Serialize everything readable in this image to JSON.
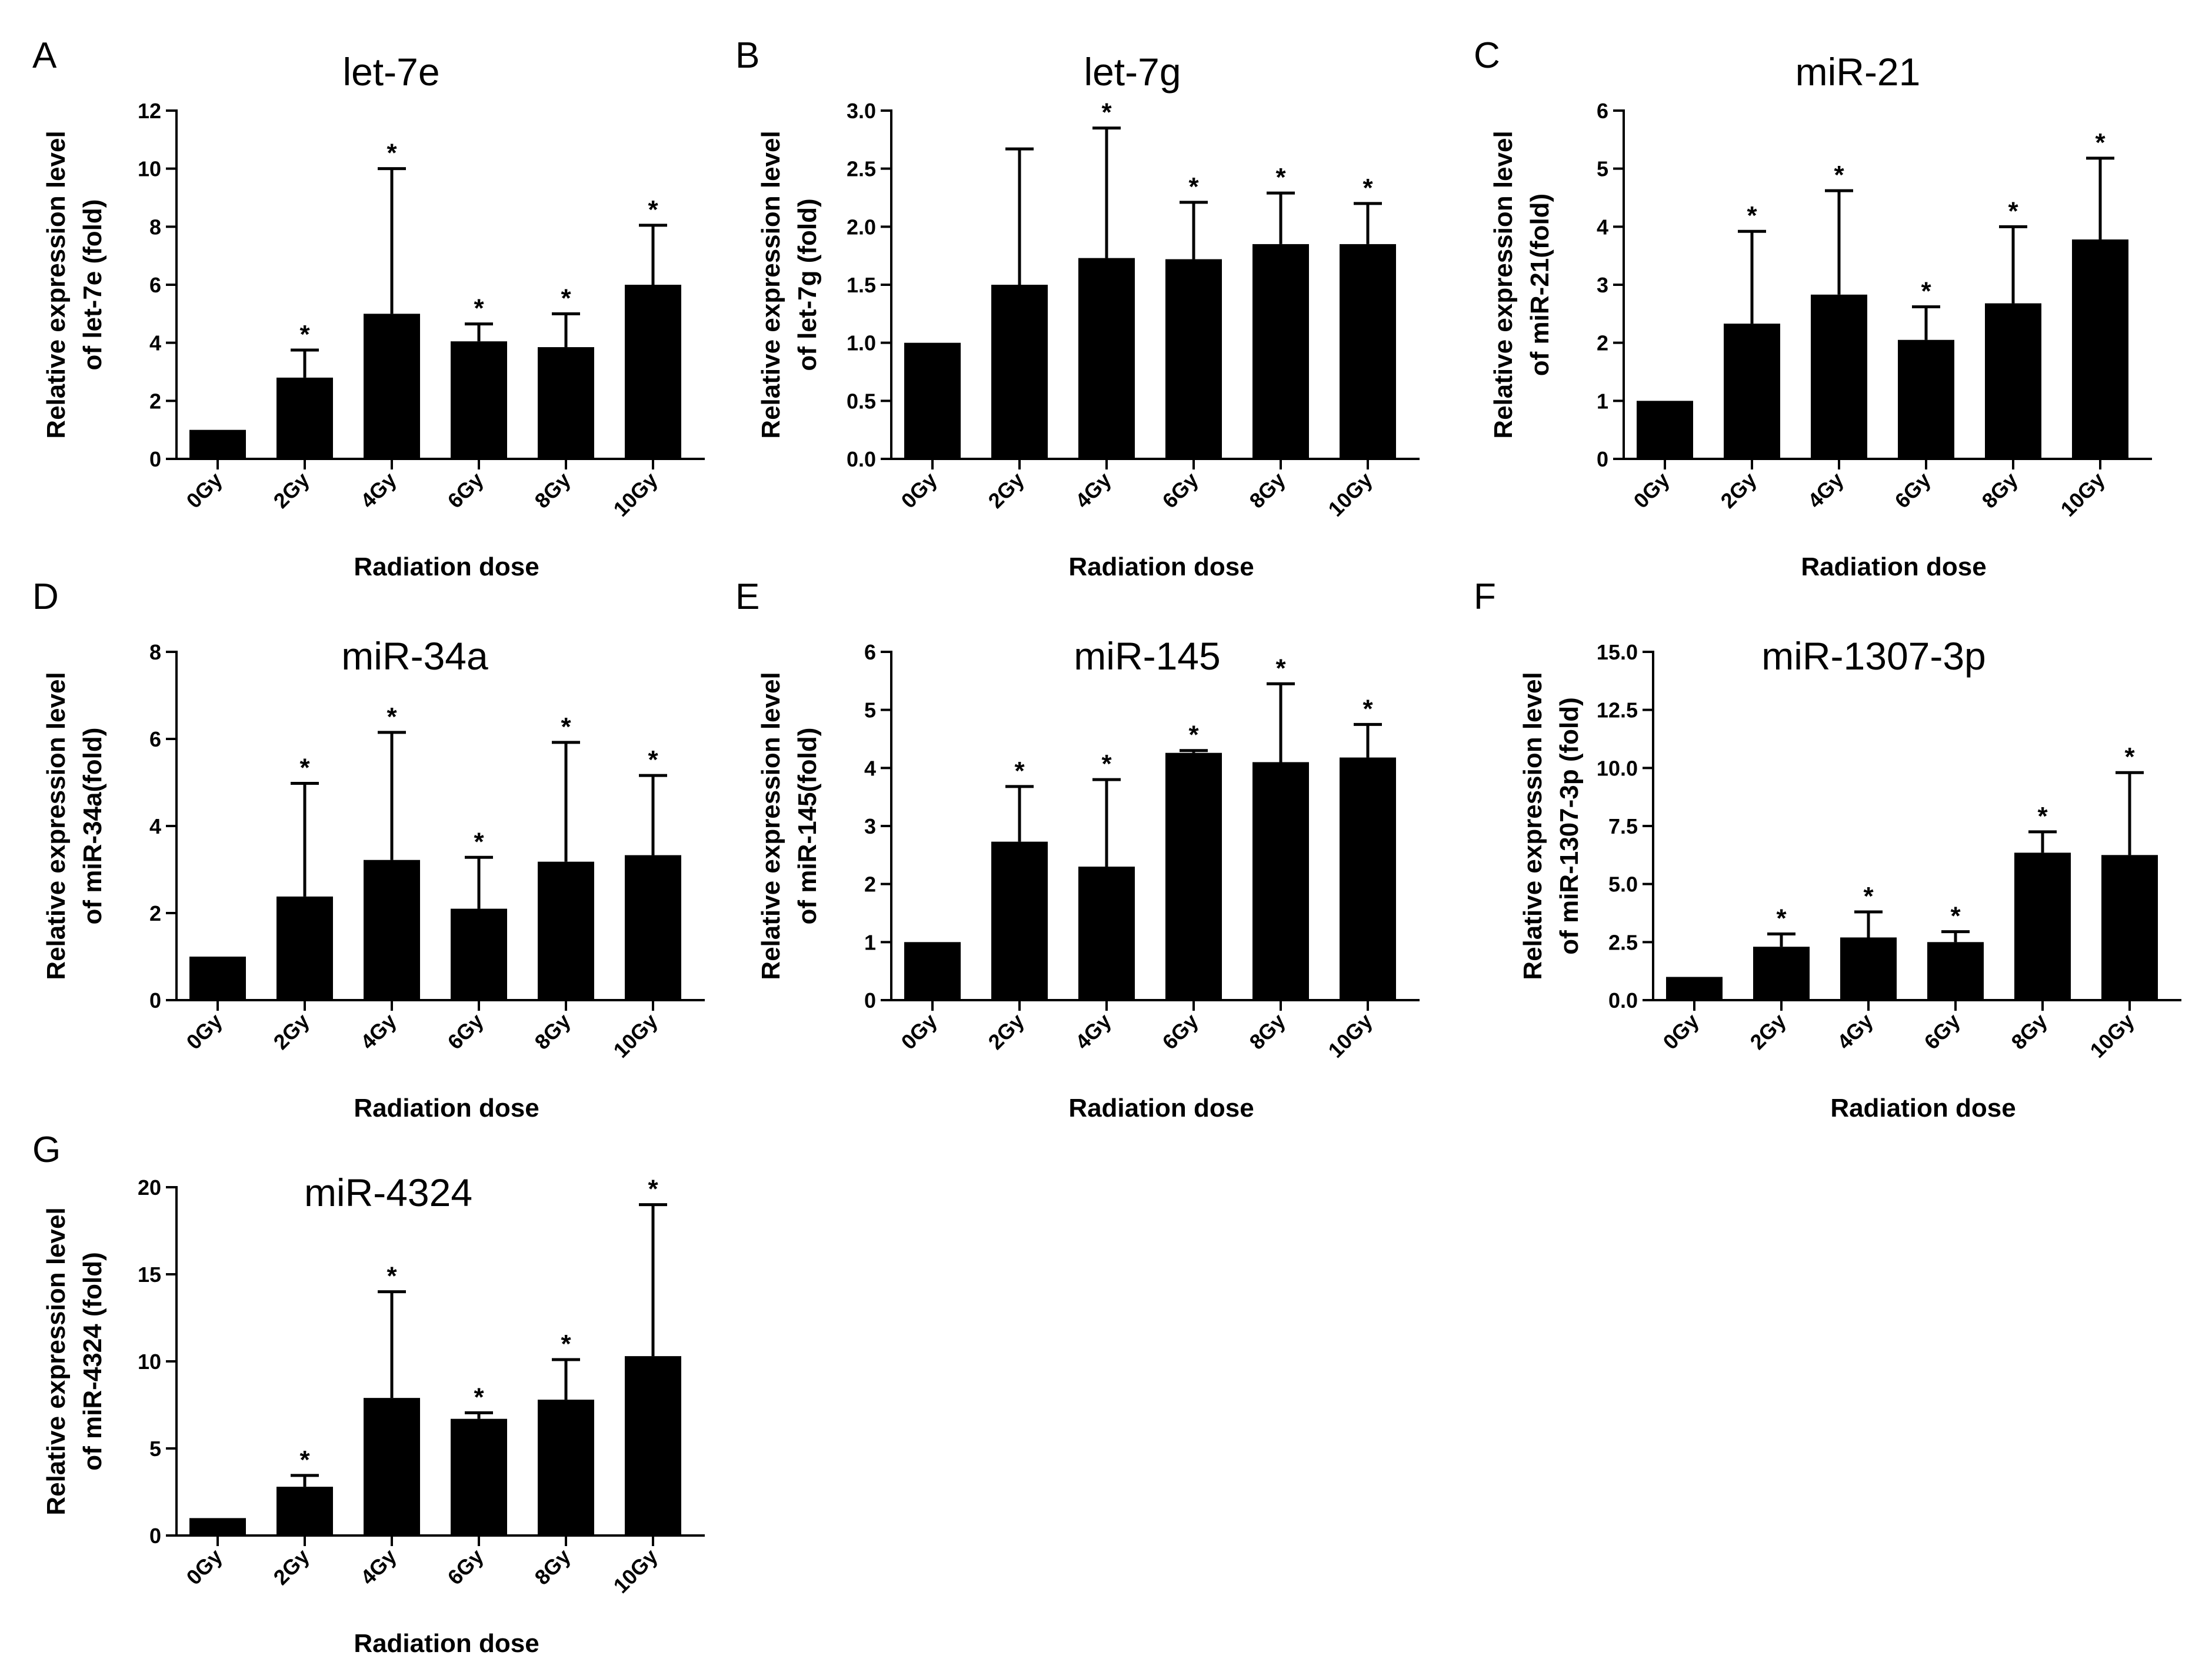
{
  "figure": {
    "background": "#ffffff",
    "ink": "#000000"
  },
  "chart_data": [
    {
      "panel": "A",
      "type": "bar",
      "title": "let-7e",
      "xlabel": "Radiation dose",
      "ylabel": [
        "Relative expression level",
        "of let-7e (fold)"
      ],
      "categories": [
        "0Gy",
        "2Gy",
        "4Gy",
        "6Gy",
        "8Gy",
        "10Gy"
      ],
      "values": [
        1.0,
        2.8,
        5.0,
        4.05,
        3.85,
        6.0
      ],
      "errors": [
        0,
        0.95,
        5.0,
        0.6,
        1.15,
        2.05
      ],
      "significance": [
        "",
        "*",
        "*",
        "*",
        "*",
        "*"
      ],
      "ylim": [
        0,
        12
      ],
      "yticks": [
        0,
        2,
        4,
        6,
        8,
        10,
        12
      ],
      "ytick_labels": [
        "0",
        "2",
        "4",
        "6",
        "8",
        "10",
        "12"
      ],
      "grid": false
    },
    {
      "panel": "B",
      "type": "bar",
      "title": "let-7g",
      "xlabel": "Radiation dose",
      "ylabel": [
        "Relative expression level",
        "of let-7g (fold)"
      ],
      "categories": [
        "0Gy",
        "2Gy",
        "4Gy",
        "6Gy",
        "8Gy",
        "10Gy"
      ],
      "values": [
        1.0,
        1.5,
        1.73,
        1.72,
        1.85,
        1.85
      ],
      "errors": [
        0,
        1.17,
        1.12,
        0.49,
        0.44,
        0.35
      ],
      "significance": [
        "",
        "",
        "*",
        "*",
        "*",
        "*"
      ],
      "ylim": [
        0,
        3.0
      ],
      "yticks": [
        0,
        0.5,
        1.0,
        1.5,
        2.0,
        2.5,
        3.0
      ],
      "ytick_labels": [
        "0.0",
        "0.5",
        "1.0",
        "1.5",
        "2.0",
        "2.5",
        "3.0"
      ],
      "grid": false
    },
    {
      "panel": "C",
      "type": "bar",
      "title": "miR-21",
      "xlabel": "Radiation dose",
      "ylabel": [
        "Relative expression level",
        "of miR-21(fold)"
      ],
      "categories": [
        "0Gy",
        "2Gy",
        "4Gy",
        "6Gy",
        "8Gy",
        "10Gy"
      ],
      "values": [
        1.0,
        2.33,
        2.83,
        2.05,
        2.68,
        3.78
      ],
      "errors": [
        0,
        1.59,
        1.79,
        0.57,
        1.32,
        1.4
      ],
      "significance": [
        "",
        "*",
        "*",
        "*",
        "*",
        "*"
      ],
      "ylim": [
        0,
        6
      ],
      "yticks": [
        0,
        1,
        2,
        3,
        4,
        5,
        6
      ],
      "ytick_labels": [
        "0",
        "1",
        "2",
        "3",
        "4",
        "5",
        "6"
      ],
      "grid": false
    },
    {
      "panel": "D",
      "type": "bar",
      "title": "miR-34a",
      "xlabel": "Radiation dose",
      "ylabel": [
        "Relative expression level",
        "of miR-34a(fold)"
      ],
      "categories": [
        "0Gy",
        "2Gy",
        "4Gy",
        "6Gy",
        "8Gy",
        "10Gy"
      ],
      "values": [
        1.0,
        2.38,
        3.22,
        2.1,
        3.18,
        3.33
      ],
      "errors": [
        0,
        2.6,
        2.93,
        1.18,
        2.74,
        1.83
      ],
      "significance": [
        "",
        "*",
        "*",
        "*",
        "*",
        "*"
      ],
      "ylim": [
        0,
        8
      ],
      "yticks": [
        0,
        2,
        4,
        6,
        8
      ],
      "ytick_labels": [
        "0",
        "2",
        "4",
        "6",
        "8"
      ],
      "grid": false
    },
    {
      "panel": "E",
      "type": "bar",
      "title": "miR-145",
      "xlabel": "Radiation dose",
      "ylabel": [
        "Relative expression level",
        "of miR-145(fold)"
      ],
      "categories": [
        "0Gy",
        "2Gy",
        "4Gy",
        "6Gy",
        "8Gy",
        "10Gy"
      ],
      "values": [
        1.0,
        2.73,
        2.3,
        4.26,
        4.1,
        4.18
      ],
      "errors": [
        0,
        0.95,
        1.5,
        0.04,
        1.35,
        0.57
      ],
      "significance": [
        "",
        "*",
        "*",
        "*",
        "*",
        "*"
      ],
      "ylim": [
        0,
        6
      ],
      "yticks": [
        0,
        1,
        2,
        3,
        4,
        5,
        6
      ],
      "ytick_labels": [
        "0",
        "1",
        "2",
        "3",
        "4",
        "5",
        "6"
      ],
      "grid": false
    },
    {
      "panel": "F",
      "type": "bar",
      "title": "miR-1307-3p",
      "xlabel": "Radiation dose",
      "ylabel": [
        "Relative expression level",
        "of miR-1307-3p (fold)"
      ],
      "categories": [
        "0Gy",
        "2Gy",
        "4Gy",
        "6Gy",
        "8Gy",
        "10Gy"
      ],
      "values": [
        1.0,
        2.3,
        2.7,
        2.5,
        6.35,
        6.25
      ],
      "errors": [
        0,
        0.55,
        1.1,
        0.45,
        0.9,
        3.55
      ],
      "significance": [
        "",
        "*",
        "*",
        "*",
        "*",
        "*"
      ],
      "ylim": [
        0,
        15.0
      ],
      "yticks": [
        0,
        2.5,
        5.0,
        7.5,
        10.0,
        12.5,
        15.0
      ],
      "ytick_labels": [
        "0.0",
        "2.5",
        "5.0",
        "7.5",
        "10.0",
        "12.5",
        "15.0"
      ],
      "grid": false
    },
    {
      "panel": "G",
      "type": "bar",
      "title": "miR-4324",
      "xlabel": "Radiation dose",
      "ylabel": [
        "Relative expression level",
        "of miR-4324 (fold)"
      ],
      "categories": [
        "0Gy",
        "2Gy",
        "4Gy",
        "6Gy",
        "8Gy",
        "10Gy"
      ],
      "values": [
        1.0,
        2.8,
        7.9,
        6.7,
        7.8,
        10.3
      ],
      "errors": [
        0,
        0.65,
        6.1,
        0.35,
        2.3,
        8.7
      ],
      "significance": [
        "",
        "*",
        "*",
        "*",
        "*",
        "*"
      ],
      "ylim": [
        0,
        20
      ],
      "yticks": [
        0,
        5,
        10,
        15,
        20
      ],
      "ytick_labels": [
        "0",
        "5",
        "10",
        "15",
        "20"
      ],
      "grid": false
    }
  ]
}
